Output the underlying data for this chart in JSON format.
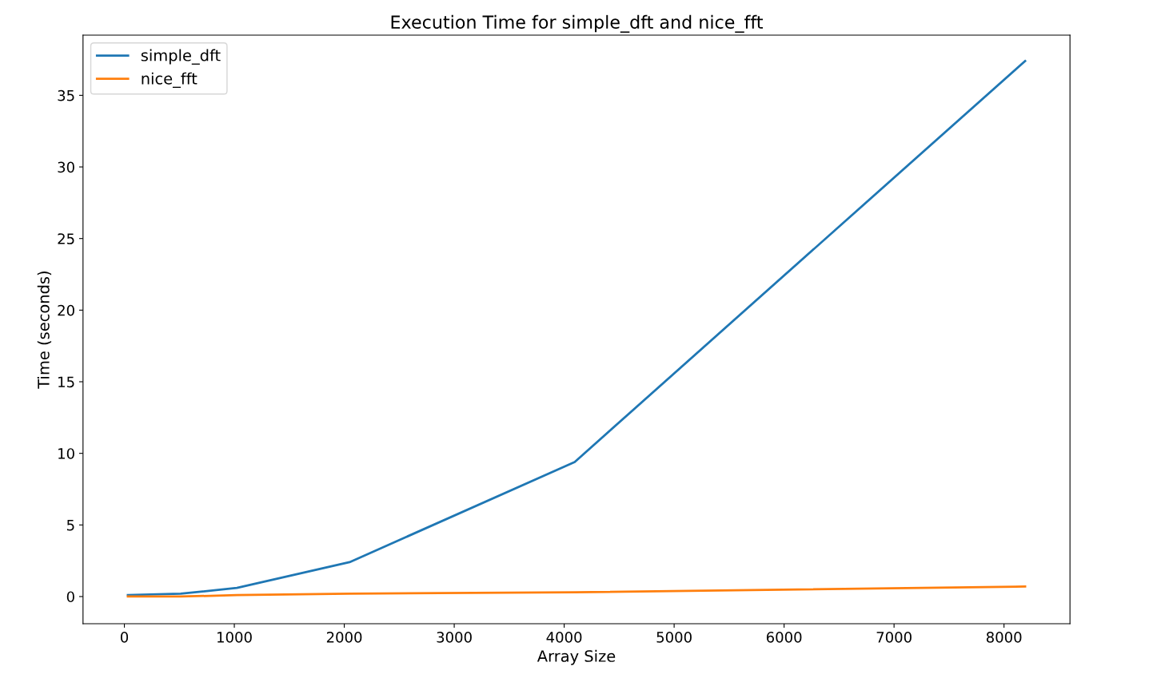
{
  "chart_data": {
    "type": "line",
    "title": "Execution Time for simple_dft and nice_fft",
    "xlabel": "Array Size",
    "ylabel": "Time (seconds)",
    "x": [
      32,
      512,
      1024,
      2048,
      4096,
      8192
    ],
    "series": [
      {
        "name": "simple_dft",
        "color": "#1f77b4",
        "values": [
          0.1,
          0.2,
          0.6,
          2.4,
          9.4,
          37.4
        ]
      },
      {
        "name": "nice_fft",
        "color": "#ff7f0e",
        "values": [
          0.0,
          0.0,
          0.1,
          0.2,
          0.3,
          0.7
        ]
      }
    ],
    "xlim": [
      -376,
      8600
    ],
    "xticks": [
      0,
      1000,
      2000,
      3000,
      4000,
      5000,
      6000,
      7000,
      8000
    ],
    "ylim": [
      -1.9,
      39.2
    ],
    "yticks": [
      0,
      5,
      10,
      15,
      20,
      25,
      30,
      35
    ],
    "grid": false,
    "legend": "top left",
    "marker": "none",
    "line_style": "solid"
  }
}
